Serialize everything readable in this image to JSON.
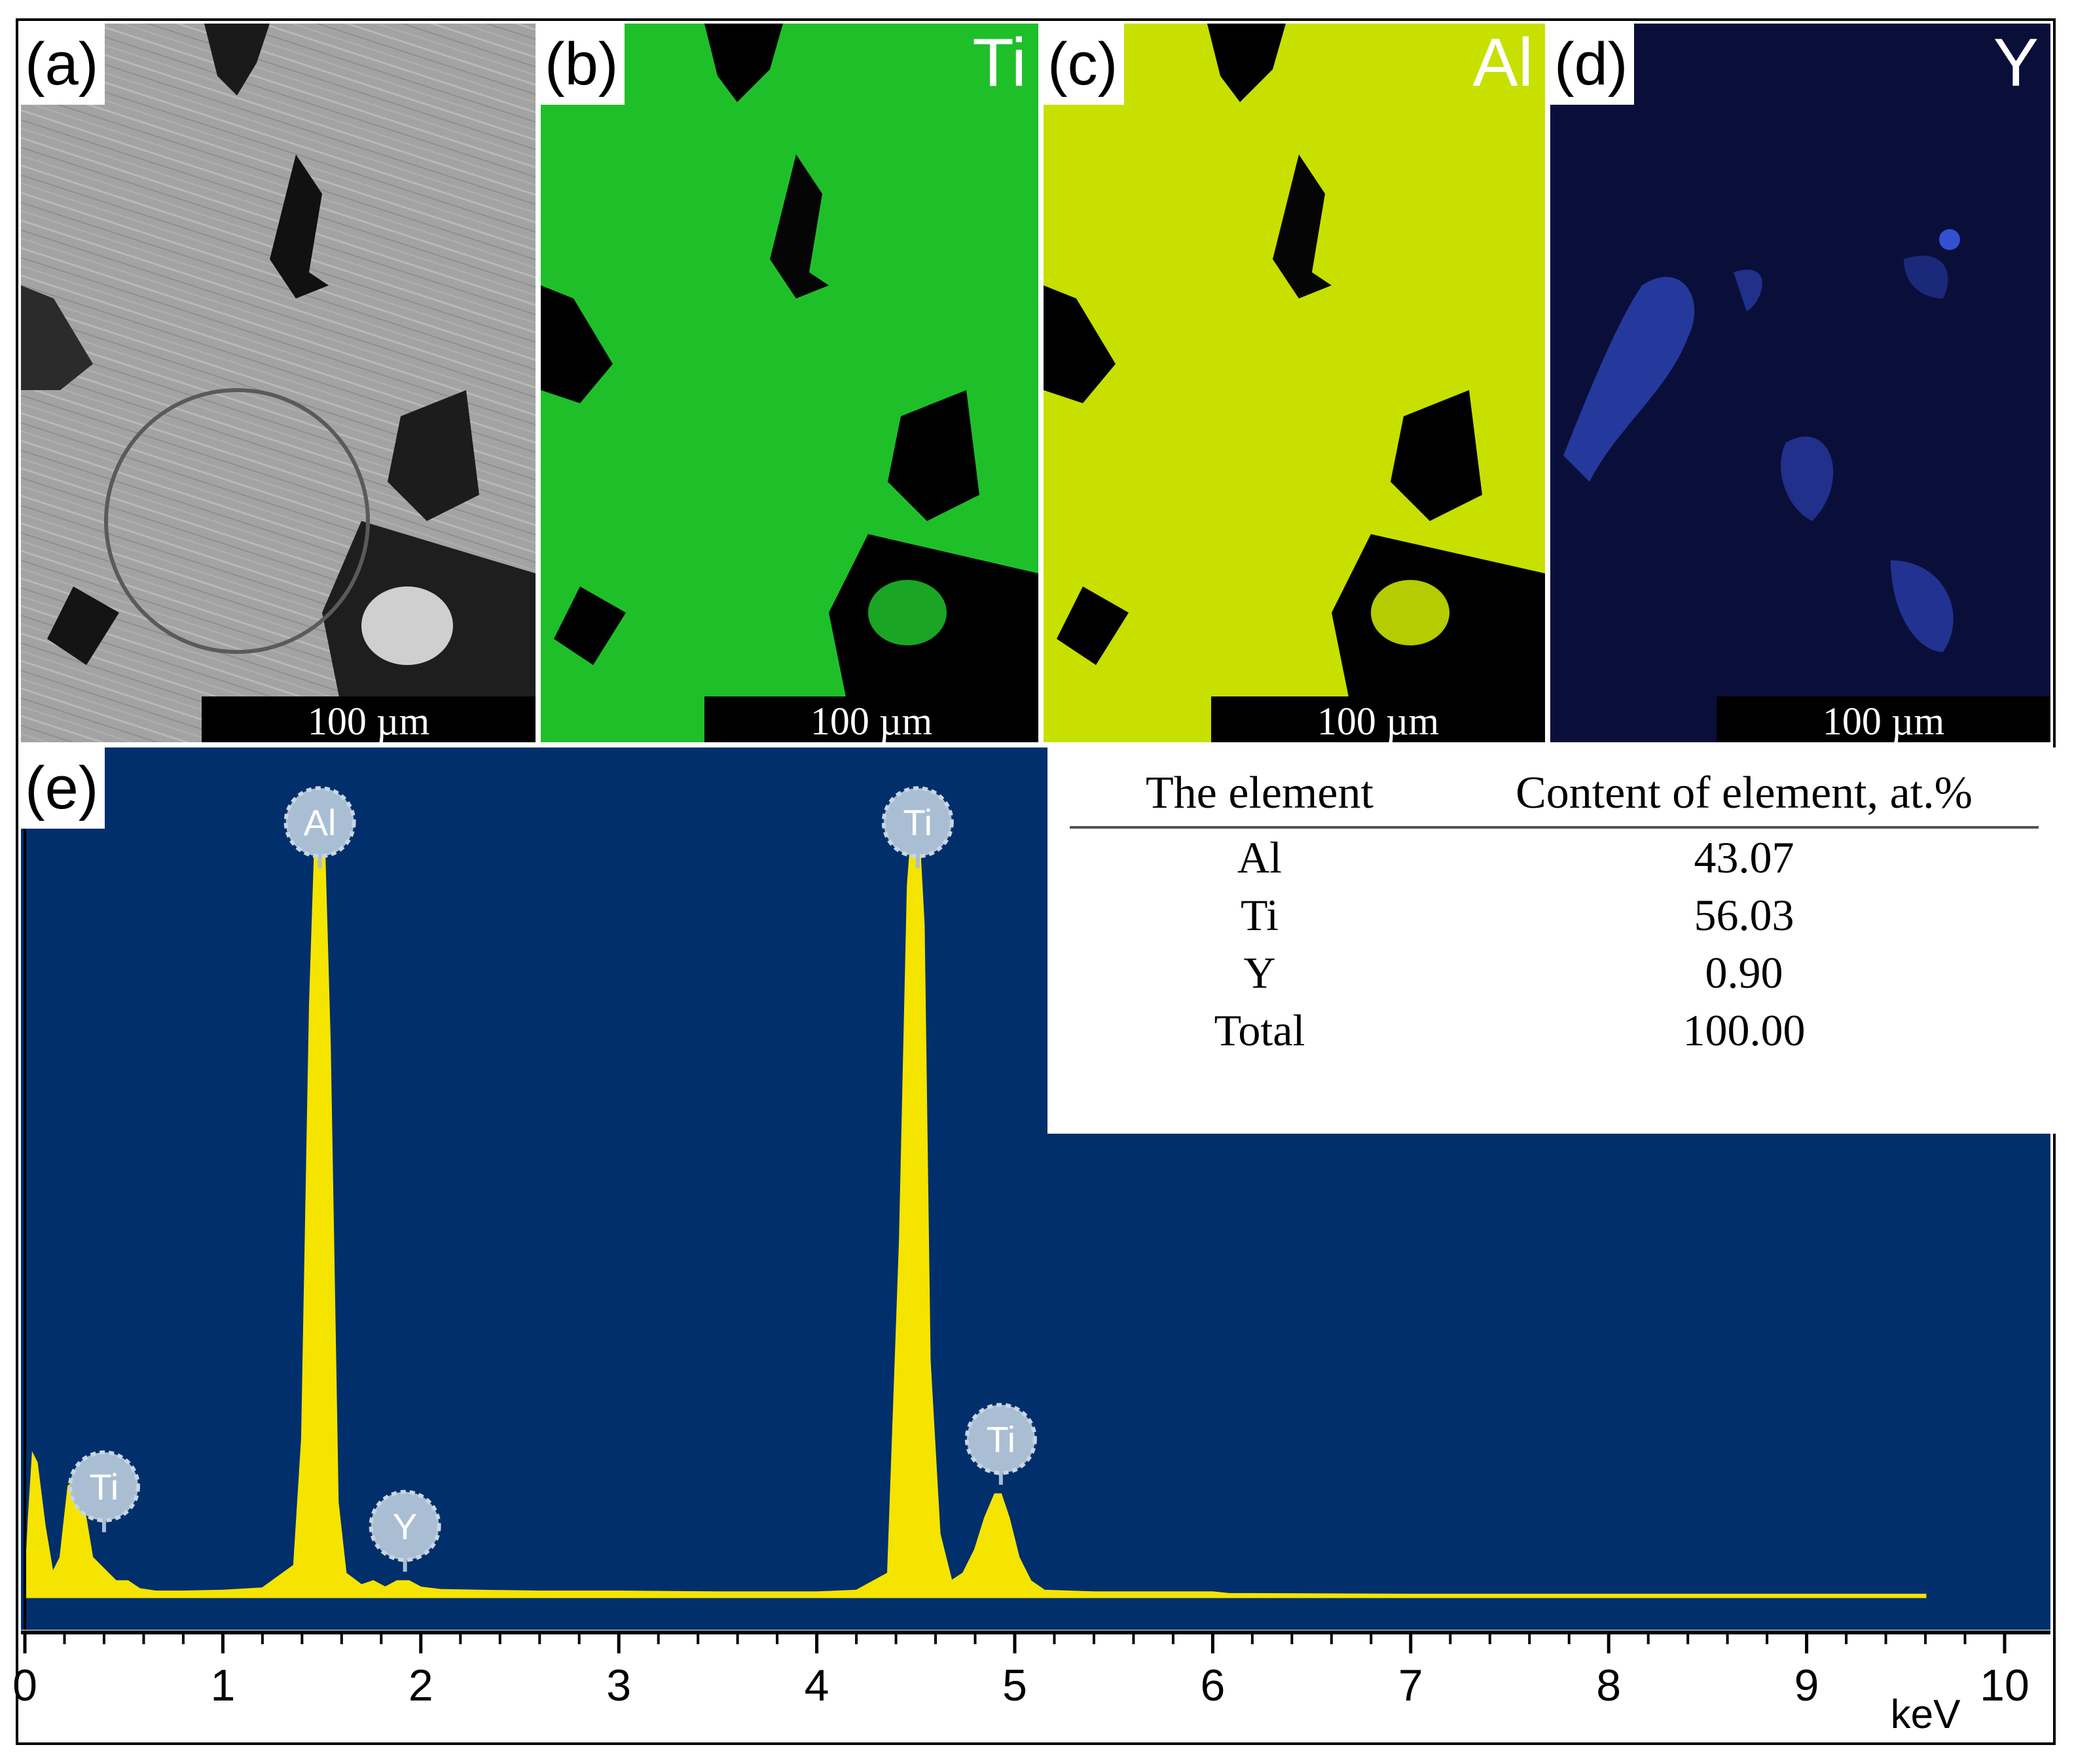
{
  "panels": [
    {
      "id": "a",
      "label": "(a)",
      "element": "",
      "scale": "100 µm",
      "color": "#9a9a9a"
    },
    {
      "id": "b",
      "label": "(b)",
      "element": "Ti",
      "scale": "100 µm",
      "color": "#1fbf2a"
    },
    {
      "id": "c",
      "label": "(c)",
      "element": "Al",
      "scale": "100 µm",
      "color": "#c7e000"
    },
    {
      "id": "d",
      "label": "(d)",
      "element": "Y",
      "scale": "100 µm",
      "color": "#2a3fae"
    }
  ],
  "spectrum": {
    "label": "(e)",
    "unit": "keV",
    "background": "#002f6c",
    "fill": "#f5e400"
  },
  "table": {
    "headers": [
      "The element",
      "Content of element, at.%"
    ],
    "rows": [
      [
        "Al",
        "43.07"
      ],
      [
        "Ti",
        "56.03"
      ],
      [
        "Y",
        "0.90"
      ],
      [
        "Total",
        "100.00"
      ]
    ]
  },
  "chart_data": {
    "type": "area",
    "xlabel": "keV",
    "ylabel": "",
    "xlim": [
      0,
      10
    ],
    "ylim": [
      0,
      100
    ],
    "x_ticks": [
      0,
      1,
      2,
      3,
      4,
      5,
      6,
      7,
      8,
      9,
      10
    ],
    "peaks": [
      {
        "element": "Ti",
        "energy": 0.4,
        "marker_height": 14
      },
      {
        "element": "Al",
        "energy": 1.49,
        "marker_height": 98
      },
      {
        "element": "Y",
        "energy": 1.92,
        "marker_height": 9
      },
      {
        "element": "Ti",
        "energy": 4.51,
        "marker_height": 98
      },
      {
        "element": "Ti",
        "energy": 4.93,
        "marker_height": 20
      }
    ],
    "spectrum": {
      "x": [
        0.0,
        0.02,
        0.04,
        0.06,
        0.1,
        0.14,
        0.18,
        0.22,
        0.26,
        0.3,
        0.34,
        0.38,
        0.42,
        0.46,
        0.52,
        0.58,
        0.66,
        0.8,
        1.0,
        1.2,
        1.36,
        1.4,
        1.44,
        1.47,
        1.49,
        1.51,
        1.54,
        1.58,
        1.62,
        1.7,
        1.76,
        1.82,
        1.88,
        1.94,
        2.0,
        2.1,
        2.3,
        2.6,
        3.0,
        3.5,
        4.0,
        4.2,
        4.36,
        4.42,
        4.46,
        4.49,
        4.51,
        4.54,
        4.57,
        4.62,
        4.68,
        4.74,
        4.8,
        4.85,
        4.9,
        4.93,
        4.97,
        5.02,
        5.08,
        5.15,
        5.4,
        6.0,
        6.08,
        7.0,
        8.0,
        9.0,
        9.6
      ],
      "y": [
        0,
        10,
        18,
        17,
        9,
        3,
        5,
        14,
        15,
        11,
        5,
        4,
        3,
        2,
        2,
        1,
        0.7,
        0.7,
        0.8,
        1.1,
        4,
        20,
        75,
        98,
        100,
        97,
        70,
        12,
        3,
        1.5,
        2,
        1.2,
        2,
        2,
        1.2,
        0.9,
        0.8,
        0.7,
        0.7,
        0.6,
        0.6,
        0.8,
        3,
        45,
        90,
        100,
        99,
        85,
        30,
        8,
        2,
        3,
        6,
        10,
        13,
        13,
        10,
        5,
        2,
        0.8,
        0.6,
        0.6,
        0.4,
        0.3,
        0.3,
        0.3,
        0.3
      ]
    }
  }
}
